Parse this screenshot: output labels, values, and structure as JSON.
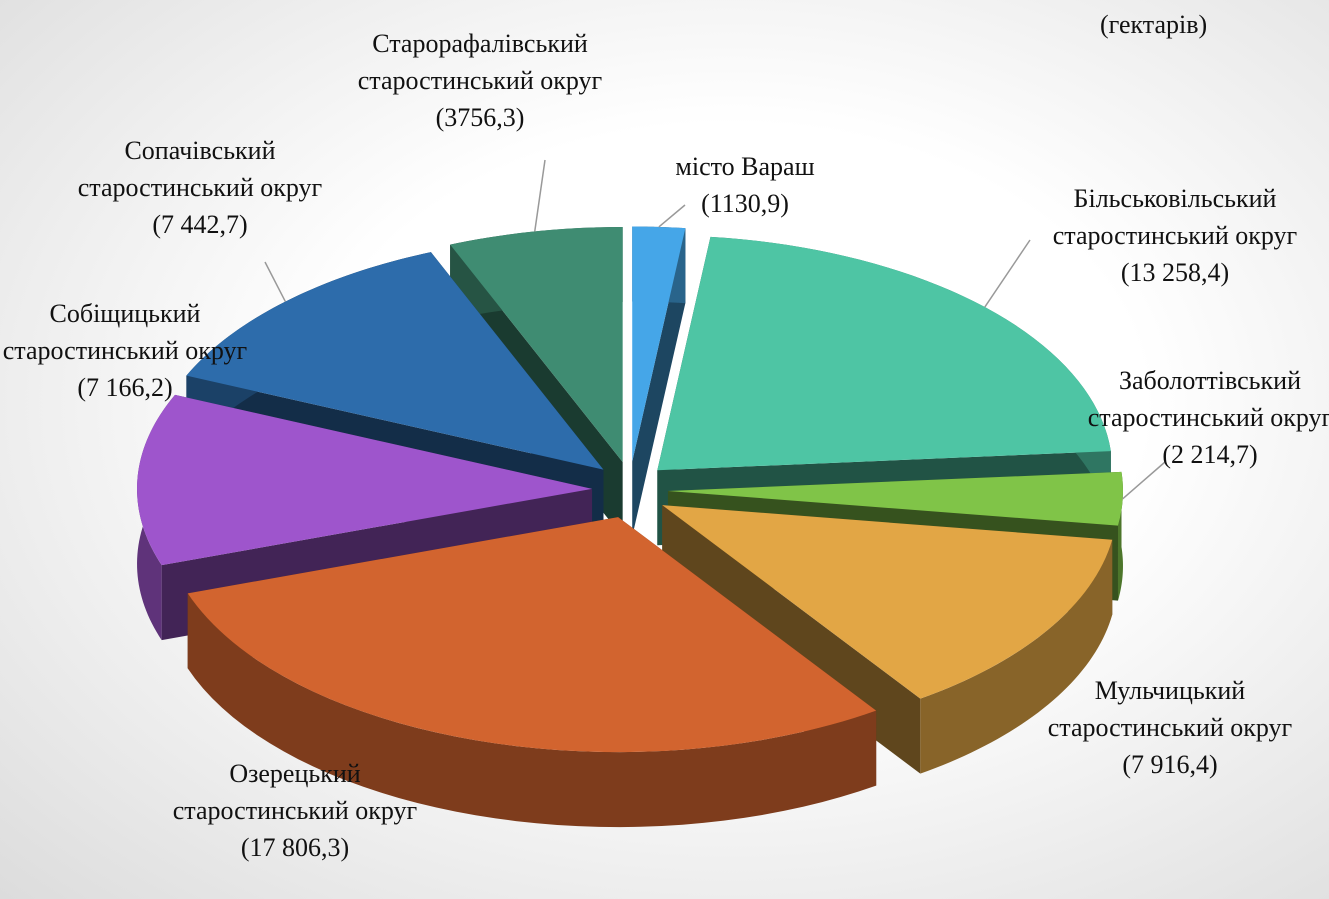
{
  "chart_data": {
    "type": "pie3d",
    "unit": "(гектарів)",
    "categories": [
      "місто Вараш",
      "Більськовільський старостинський округ",
      "Заболоттівський старостинський округ",
      "Мульчицький старостинський округ",
      "Озерецький старостинський округ",
      "Собіщицький старостинський округ",
      "Сопачівський старостинський округ",
      "Старорафалівський старостинський округ"
    ],
    "values": [
      1130.9,
      13258.4,
      2214.7,
      7916.4,
      17806.3,
      7166.2,
      7442.7,
      3756.3
    ],
    "value_labels": [
      "(1130,9)",
      "(13 258,4)",
      "(2 214,7)",
      "(7 916,4)",
      "(17 806,3)",
      "(7 166,2)",
      "(7 442,7)",
      "(3756,3)"
    ],
    "colors": [
      "#45a6e8",
      "#4ec5a4",
      "#80c448",
      "#e2a645",
      "#d2642f",
      "#9e55cc",
      "#2d6cab",
      "#3f8c72"
    ]
  }
}
